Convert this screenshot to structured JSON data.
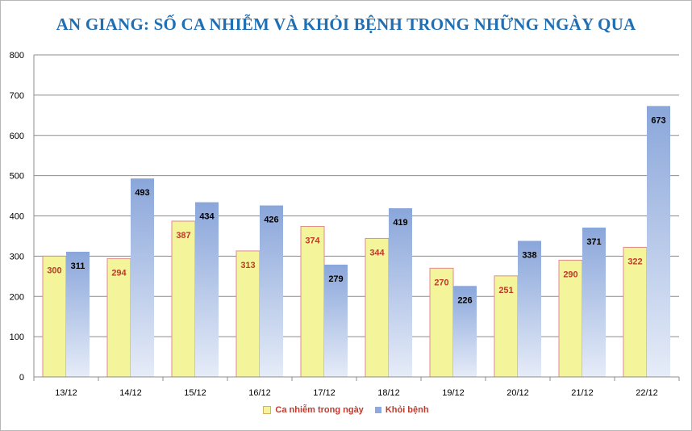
{
  "chart_data": {
    "type": "bar",
    "title": "AN GIANG: SỐ CA NHIỄM VÀ KHỎI BỆNH TRONG NHỮNG NGÀY QUA",
    "categories": [
      "13/12",
      "14/12",
      "15/12",
      "16/12",
      "17/12",
      "18/12",
      "19/12",
      "20/12",
      "21/12",
      "22/12"
    ],
    "series": [
      {
        "name": "Ca nhiễm trong ngày",
        "values": [
          300,
          294,
          387,
          313,
          374,
          344,
          270,
          251,
          290,
          322
        ],
        "color": "#f4f49a",
        "border": "#e0a0a0",
        "label_color": "#c0392b"
      },
      {
        "name": "Khỏi bệnh",
        "values": [
          311,
          493,
          434,
          426,
          279,
          419,
          226,
          338,
          371,
          673
        ],
        "color": "#8fa9dc",
        "border": "#8fa9dc",
        "label_color": "#000000"
      }
    ],
    "y_ticks": [
      "0",
      "100",
      "200",
      "300",
      "400",
      "500",
      "600",
      "700",
      "800"
    ],
    "ylim": [
      0,
      800
    ],
    "grid": true,
    "legend_position": "bottom"
  }
}
